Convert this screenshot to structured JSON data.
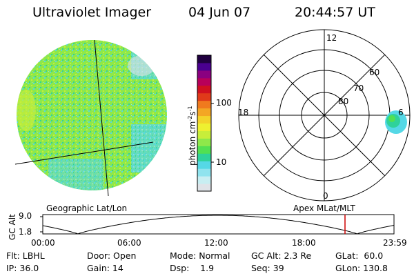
{
  "header": {
    "instrument": "Ultraviolet Imager",
    "date": "04 Jun 07",
    "time": "20:44:57 UT"
  },
  "colorbar": {
    "unit_label": "photon cm",
    "unit_exp1": "-2",
    "unit_s": "s",
    "unit_exp2": "-1",
    "ticks": [
      "100",
      "10"
    ],
    "colors": [
      "#dfe3e8",
      "#c8eef2",
      "#8fe3ee",
      "#55d8e6",
      "#2fd29a",
      "#52e052",
      "#8ee84a",
      "#c8ee3a",
      "#eef030",
      "#f3d32a",
      "#f3a624",
      "#f07a1e",
      "#e03a1a",
      "#d01020",
      "#b8005a",
      "#8a0080",
      "#4a0090",
      "#200040"
    ]
  },
  "polar_plot": {
    "mlt_labels": {
      "top": "12",
      "left": "18",
      "right": "6",
      "bottom": "0"
    },
    "lat_labels": [
      "60",
      "70",
      "80"
    ]
  },
  "orbit_panel": {
    "y_label": "GC Alt",
    "y_ticks": [
      "9.0",
      "1.8"
    ],
    "left_title": "Geographic Lat/Lon",
    "right_title": "Apex  MLat/MLT",
    "x_ticks": [
      "00:00",
      "06:00",
      "12:00",
      "18:00",
      "23:59"
    ],
    "marker_color": "#cc0000"
  },
  "info": {
    "row1": {
      "flt": "Flt: LBHL",
      "door": "Door: Open",
      "mode": "Mode: Normal",
      "gc_alt": "GC Alt: 2.3 Re",
      "glat": "GLat:  60.0"
    },
    "row2": {
      "ip": "IP: 36.0",
      "gain": "Gain: 14",
      "dsp": "Dsp:    1.9",
      "seq": "Seq: 39",
      "glon": "GLon: 130.8"
    }
  }
}
